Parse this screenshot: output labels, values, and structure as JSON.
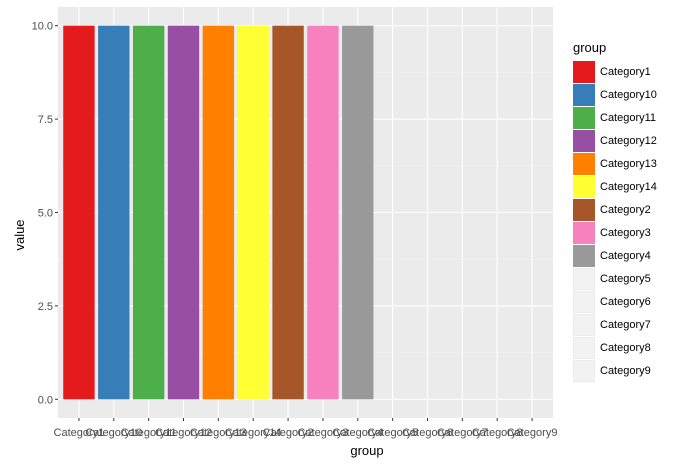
{
  "chart_data": {
    "type": "bar",
    "categories": [
      "Category1",
      "Category10",
      "Category11",
      "Category12",
      "Category13",
      "Category14",
      "Category2",
      "Category3",
      "Category4",
      "Category5",
      "Category6",
      "Category7",
      "Category8",
      "Category9"
    ],
    "series": [
      {
        "values": [
          10,
          10,
          10,
          10,
          10,
          10,
          10,
          10,
          10,
          null,
          null,
          null,
          null,
          null
        ]
      }
    ],
    "colors": [
      "#E41A1C",
      "#377EB8",
      "#4DAF4A",
      "#984EA3",
      "#FF7F00",
      "#FFFF33",
      "#A65628",
      "#F781BF",
      "#999999",
      null,
      null,
      null,
      null,
      null
    ],
    "xlabel": "group",
    "ylabel": "value",
    "ylim": [
      -0.5,
      10.5
    ],
    "yticks": [
      0.0,
      2.5,
      5.0,
      7.5,
      10.0
    ],
    "ytick_labels": [
      "0.0",
      "2.5",
      "5.0",
      "7.5",
      "10.0"
    ],
    "grid": true,
    "legend": {
      "title": "group",
      "placement": "right",
      "entries": [
        "Category1",
        "Category10",
        "Category11",
        "Category12",
        "Category13",
        "Category14",
        "Category2",
        "Category3",
        "Category4",
        "Category5",
        "Category6",
        "Category7",
        "Category8",
        "Category9"
      ]
    }
  }
}
